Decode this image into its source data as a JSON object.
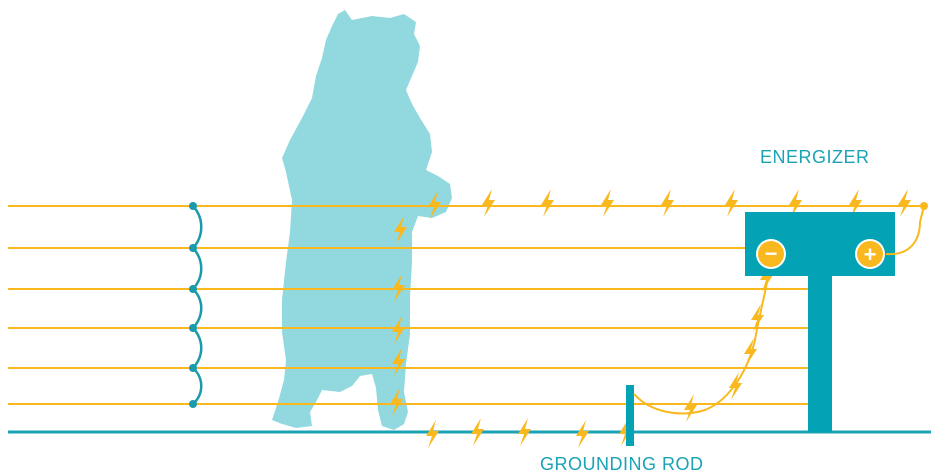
{
  "labels": {
    "energizer": "ENERGIZER",
    "grounding_rod": "GROUNDING ROD"
  },
  "terminals": {
    "negative": "−",
    "positive": "+"
  },
  "colors": {
    "bear": "#92d8df",
    "wire": "#f8b81e",
    "spark": "#f8b81e",
    "energizer": "#03a3b5",
    "ground_line": "#1aa3b5",
    "connector": "#1a9aaa",
    "label": "#1aa3b5"
  },
  "icons": [
    "bear-silhouette-icon",
    "lightning-bolt-icon",
    "energizer-box-icon",
    "grounding-rod-icon"
  ]
}
